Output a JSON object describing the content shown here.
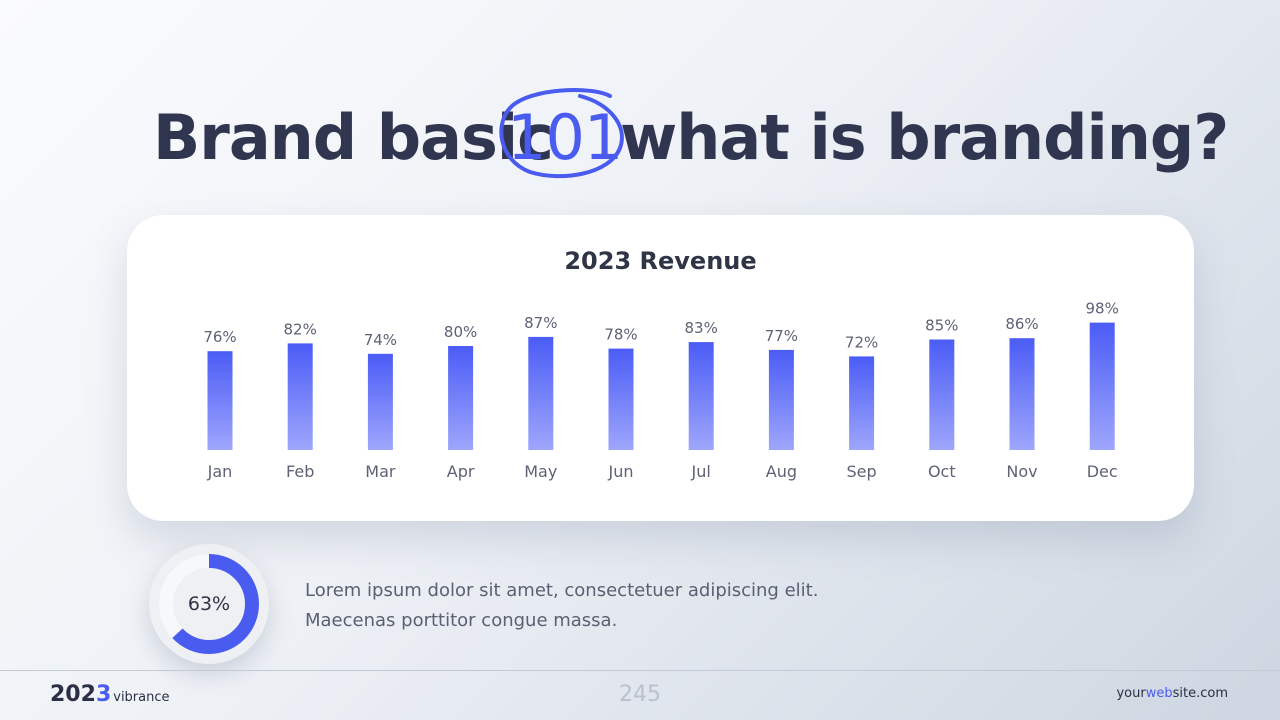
{
  "slide": {
    "title_pre": "Brand basic",
    "title_highlight": "101",
    "title_post": "what is branding?",
    "description_line1": "Lorem ipsum dolor sit amet, consectetuer adipiscing elit.",
    "description_line2": "Maecenas porttitor congue massa.",
    "donut": {
      "value": 63,
      "label": "63%"
    },
    "footer": {
      "brand_year_a": "202",
      "brand_year_b": "3",
      "brand_name": "vibrance",
      "page_number": "245",
      "site_pre": "your",
      "site_hl": "web",
      "site_post": "site.com"
    },
    "colors": {
      "accent": "#4a5cf0",
      "bar_top": "#4b5cf6",
      "bar_bottom": "#9ea6fc",
      "text_dark": "#303650"
    }
  },
  "chart_data": {
    "type": "bar",
    "title": "2023 Revenue",
    "categories": [
      "Jan",
      "Feb",
      "Mar",
      "Apr",
      "May",
      "Jun",
      "Jul",
      "Aug",
      "Sep",
      "Oct",
      "Nov",
      "Dec"
    ],
    "values": [
      76,
      82,
      74,
      80,
      87,
      78,
      83,
      77,
      72,
      85,
      86,
      98
    ],
    "data_labels": [
      "76%",
      "82%",
      "74%",
      "80%",
      "87%",
      "78%",
      "83%",
      "77%",
      "72%",
      "85%",
      "86%",
      "98%"
    ],
    "ylim": [
      0,
      100
    ],
    "grid": false,
    "legend": "none"
  }
}
